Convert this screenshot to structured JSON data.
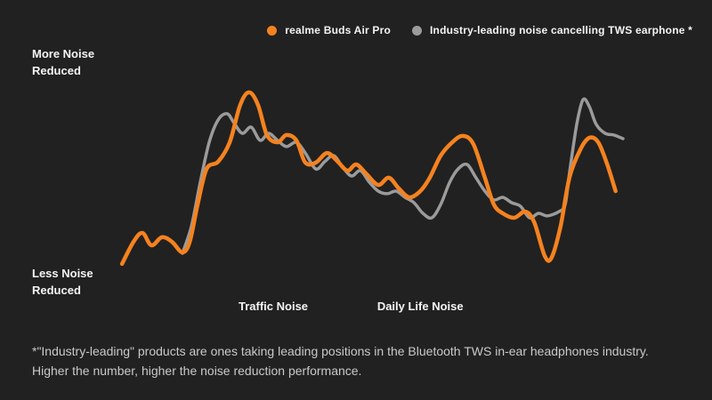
{
  "page": {
    "background_color": "#212121",
    "text_color": "#f4f4f4",
    "footnote_color": "#c9c9c9"
  },
  "labels": {
    "y_top": "More Noise Reduced",
    "y_bottom": "Less Noise Reduced"
  },
  "footnote": "*\"Industry-leading\" products are ones taking leading positions in the Bluetooth TWS in-ear headphones industry. Higher the number, higher the noise reduction performance.",
  "chart_data": {
    "type": "line",
    "title": "",
    "xlabel": "",
    "ylabel": "",
    "grid": false,
    "legend_position": "top-right",
    "y_axis_note": "qualitative: higher = more noise reduced (values normalized 0-100)",
    "x_axis_note": "qualitative noise-scenario sweep (positions normalized 0-100)",
    "x_ticks": [
      {
        "label": "Traffic Noise",
        "pos": 31.7
      },
      {
        "label": "Daily Life Noise",
        "pos": 59.7
      }
    ],
    "series": [
      {
        "name": "realme Buds Air Pro",
        "color": "#F5821F",
        "stroke_width": 4.5,
        "x": [
          2.9,
          5.1,
          6.8,
          8.5,
          10.5,
          12.4,
          14.4,
          15.8,
          17.3,
          19.0,
          21.2,
          23.4,
          25.4,
          27.1,
          28.8,
          30.5,
          32.5,
          34.2,
          36.1,
          37.8,
          39.8,
          41.9,
          43.7,
          45.8,
          47.5,
          49.5,
          51.7,
          53.7,
          55.6,
          57.6,
          59.7,
          61.5,
          63.6,
          65.8,
          67.8,
          69.8,
          72.0,
          73.7,
          75.4,
          77.6,
          79.7,
          81.4,
          83.4,
          84.7,
          86.4,
          88.1,
          90.2,
          91.9,
          93.6,
          95.3,
          96.9
        ],
        "y": [
          13.8,
          24.2,
          28.3,
          22.5,
          26.3,
          24.2,
          19.2,
          24.2,
          41.7,
          58.3,
          61.7,
          70.8,
          88.3,
          94.2,
          88.3,
          74.2,
          70.8,
          74.2,
          71.7,
          61.3,
          61.3,
          65.8,
          62.5,
          57.5,
          60.4,
          55.8,
          50.8,
          54.2,
          49.2,
          45.0,
          47.9,
          54.2,
          64.6,
          70.8,
          73.8,
          70.0,
          54.2,
          41.7,
          37.5,
          35.4,
          38.3,
          33.3,
          17.5,
          16.7,
          31.3,
          54.2,
          67.5,
          72.9,
          70.8,
          60.4,
          47.9
        ]
      },
      {
        "name": "Industry-leading noise cancelling TWS earphone *",
        "color": "#9B9B9B",
        "stroke_width": 3.5,
        "x": [
          14.4,
          16.1,
          17.8,
          19.5,
          21.2,
          22.9,
          24.2,
          25.8,
          27.5,
          29.2,
          30.8,
          32.5,
          34.2,
          36.1,
          37.8,
          39.8,
          41.5,
          43.2,
          44.9,
          46.6,
          48.3,
          50.0,
          51.7,
          53.4,
          55.1,
          56.8,
          58.5,
          60.2,
          61.9,
          63.6,
          65.3,
          66.9,
          68.6,
          70.3,
          72.0,
          73.7,
          75.4,
          77.1,
          78.8,
          80.5,
          82.2,
          83.9,
          86.1,
          87.3,
          88.1,
          89.5,
          90.7,
          91.9,
          93.2,
          94.9,
          96.6,
          98.3
        ],
        "y": [
          18.8,
          31.3,
          52.1,
          70.8,
          81.3,
          84.2,
          80.0,
          75.0,
          77.9,
          71.7,
          75.0,
          71.7,
          68.8,
          70.8,
          65.8,
          58.3,
          61.7,
          64.6,
          59.2,
          55.0,
          57.5,
          52.1,
          47.9,
          46.7,
          47.9,
          45.0,
          42.5,
          37.5,
          35.4,
          41.7,
          52.1,
          58.3,
          60.4,
          54.2,
          47.9,
          43.8,
          45.0,
          42.5,
          40.8,
          35.4,
          37.5,
          36.3,
          38.3,
          41.7,
          56.3,
          79.2,
          90.8,
          87.5,
          79.2,
          75.0,
          74.2,
          72.5
        ]
      }
    ]
  }
}
